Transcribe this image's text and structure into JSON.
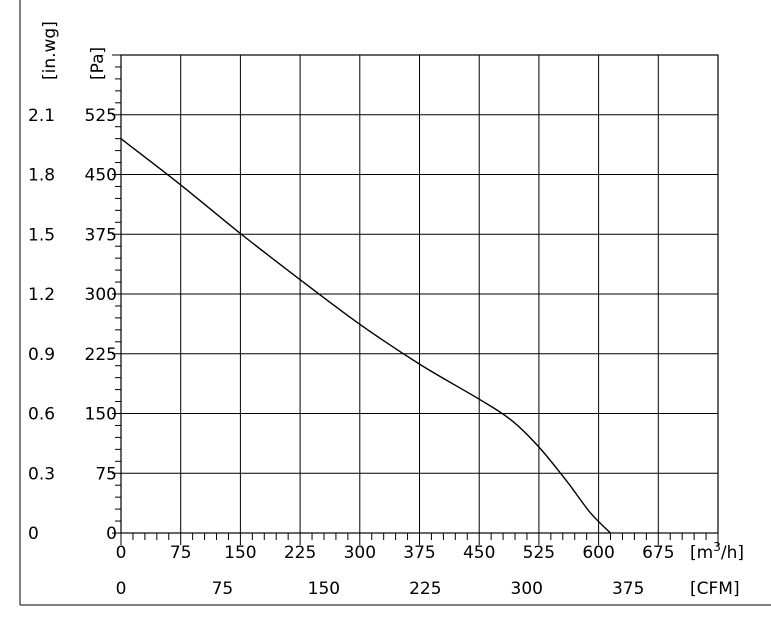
{
  "chart_data": {
    "type": "line",
    "title": "",
    "x_axis_primary": {
      "unit_label": "[m",
      "unit_superscript": "3",
      "unit_suffix": "/h]",
      "ticks": [
        "0",
        "75",
        "150",
        "225",
        "300",
        "375",
        "450",
        "525",
        "600",
        "675"
      ],
      "range": [
        0,
        750
      ]
    },
    "x_axis_secondary": {
      "unit_label": "[CFM]",
      "ticks": [
        "0",
        "75",
        "150",
        "225",
        "300",
        "375"
      ],
      "range": [
        0,
        441.4
      ]
    },
    "y_axis_pa": {
      "unit_label": "[Pa]",
      "ticks": [
        "0",
        "75",
        "150",
        "225",
        "300",
        "375",
        "450",
        "525"
      ],
      "range": [
        0,
        600
      ]
    },
    "y_axis_inwg": {
      "unit_label": "[in.wg]",
      "ticks": [
        "0",
        "0.3",
        "0.6",
        "0.9",
        "1.2",
        "1.5",
        "1.8",
        "2.1"
      ]
    },
    "grid": true,
    "series": [
      {
        "x": [
          0,
          75,
          150,
          225,
          300,
          375,
          450,
          490,
          525,
          560,
          590,
          615
        ],
        "y": [
          495,
          437,
          376,
          318,
          262,
          212,
          168,
          142,
          108,
          65,
          25,
          0
        ]
      }
    ]
  }
}
